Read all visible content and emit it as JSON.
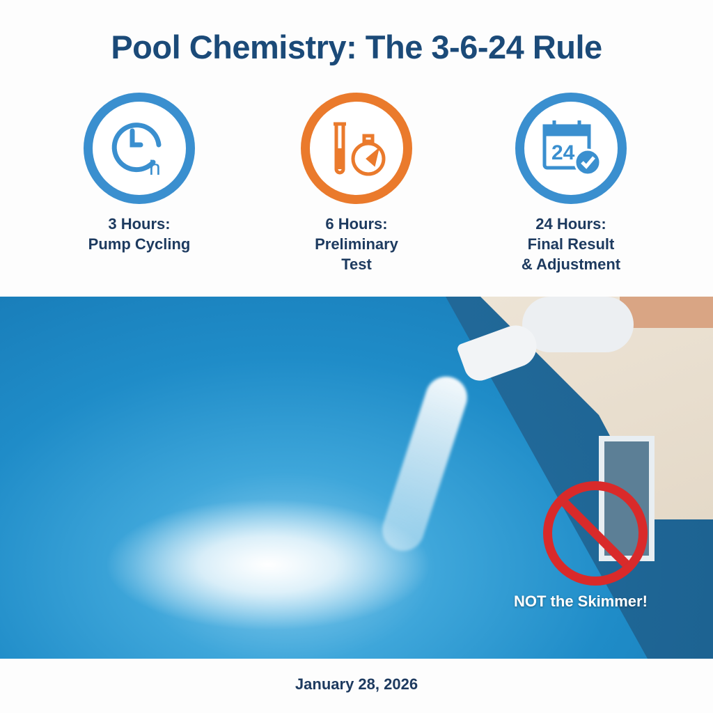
{
  "title": "Pool Chemistry: The 3-6-24 Rule",
  "steps": [
    {
      "icon": "clock-hour-icon",
      "color": "#3a8fcf",
      "line1": "3 Hours:",
      "line2": "Pump Cycling",
      "line3": ""
    },
    {
      "icon": "test-tube-stopwatch-icon",
      "color": "#ea7a2c",
      "line1": "6 Hours:",
      "line2": "Preliminary",
      "line3": "Test"
    },
    {
      "icon": "calendar-24-check-icon",
      "color": "#3a8fcf",
      "line1": "24 Hours:",
      "line2": "Final Result",
      "line3": "& Adjustment"
    }
  ],
  "photo": {
    "warning": "NOT the Skimmer!",
    "warning_icon": "prohibited-icon",
    "warning_color": "#d92a2a",
    "calendar_number": "24",
    "clock_unit": "h"
  },
  "date": "January 28, 2026"
}
